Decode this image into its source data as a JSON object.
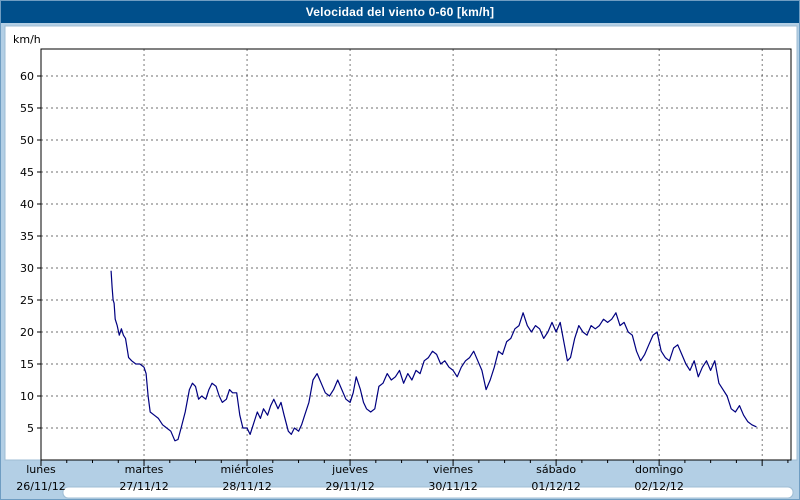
{
  "title_bar": {
    "title": "Velocidad del viento 0-60 [km/h]"
  },
  "chart_data": {
    "type": "line",
    "title": "Velocidad del viento 0-60 [km/h]",
    "ylabel": "km/h",
    "ylim": [
      0,
      60
    ],
    "y_ticks": [
      5,
      10,
      15,
      20,
      25,
      30,
      35,
      40,
      45,
      50,
      55,
      60
    ],
    "grid": true,
    "legend": false,
    "x_domain_days": [
      0,
      7.28
    ],
    "x_axis_days": [
      {
        "name": "lunes",
        "date": "26/11/12"
      },
      {
        "name": "martes",
        "date": "27/11/12"
      },
      {
        "name": "miércoles",
        "date": "28/11/12"
      },
      {
        "name": "jueves",
        "date": "29/11/12"
      },
      {
        "name": "viernes",
        "date": "30/11/12"
      },
      {
        "name": "sábado",
        "date": "01/12/12"
      },
      {
        "name": "domingo",
        "date": "02/12/12"
      }
    ],
    "series": [
      {
        "name": "velocidad del viento",
        "unit": "km/h",
        "color": "#000080",
        "points_day_value": [
          [
            0.68,
            29.5
          ],
          [
            0.69,
            27
          ],
          [
            0.7,
            25
          ],
          [
            0.71,
            24.5
          ],
          [
            0.72,
            22
          ],
          [
            0.74,
            21
          ],
          [
            0.76,
            19.5
          ],
          [
            0.78,
            20.5
          ],
          [
            0.8,
            19.5
          ],
          [
            0.82,
            19
          ],
          [
            0.85,
            16
          ],
          [
            0.88,
            15.5
          ],
          [
            0.92,
            15
          ],
          [
            0.96,
            15
          ],
          [
            1.0,
            14.5
          ],
          [
            1.02,
            13.5
          ],
          [
            1.04,
            10
          ],
          [
            1.06,
            7.5
          ],
          [
            1.1,
            7
          ],
          [
            1.14,
            6.5
          ],
          [
            1.18,
            5.5
          ],
          [
            1.22,
            5
          ],
          [
            1.26,
            4.5
          ],
          [
            1.3,
            3
          ],
          [
            1.33,
            3.2
          ],
          [
            1.36,
            5
          ],
          [
            1.4,
            7.5
          ],
          [
            1.44,
            11
          ],
          [
            1.47,
            12
          ],
          [
            1.5,
            11.5
          ],
          [
            1.53,
            9.5
          ],
          [
            1.56,
            10
          ],
          [
            1.6,
            9.5
          ],
          [
            1.63,
            11
          ],
          [
            1.66,
            12
          ],
          [
            1.7,
            11.5
          ],
          [
            1.73,
            10
          ],
          [
            1.76,
            9
          ],
          [
            1.8,
            9.5
          ],
          [
            1.83,
            11
          ],
          [
            1.86,
            10.5
          ],
          [
            1.9,
            10.5
          ],
          [
            1.93,
            7
          ],
          [
            1.96,
            5
          ],
          [
            2.0,
            5
          ],
          [
            2.03,
            4
          ],
          [
            2.06,
            5.5
          ],
          [
            2.1,
            7.5
          ],
          [
            2.13,
            6.5
          ],
          [
            2.16,
            8
          ],
          [
            2.2,
            7
          ],
          [
            2.23,
            8.5
          ],
          [
            2.26,
            9.5
          ],
          [
            2.3,
            8
          ],
          [
            2.33,
            9
          ],
          [
            2.36,
            7
          ],
          [
            2.4,
            4.5
          ],
          [
            2.43,
            4
          ],
          [
            2.46,
            5
          ],
          [
            2.5,
            4.5
          ],
          [
            2.53,
            5.5
          ],
          [
            2.56,
            7
          ],
          [
            2.6,
            9
          ],
          [
            2.64,
            12.5
          ],
          [
            2.68,
            13.5
          ],
          [
            2.72,
            12
          ],
          [
            2.76,
            10.5
          ],
          [
            2.8,
            10
          ],
          [
            2.84,
            11
          ],
          [
            2.88,
            12.5
          ],
          [
            2.92,
            11
          ],
          [
            2.96,
            9.5
          ],
          [
            3.0,
            9
          ],
          [
            3.03,
            10.5
          ],
          [
            3.06,
            13
          ],
          [
            3.1,
            11
          ],
          [
            3.13,
            9
          ],
          [
            3.16,
            8
          ],
          [
            3.2,
            7.5
          ],
          [
            3.24,
            8
          ],
          [
            3.28,
            11.5
          ],
          [
            3.32,
            12
          ],
          [
            3.36,
            13.5
          ],
          [
            3.4,
            12.5
          ],
          [
            3.44,
            13
          ],
          [
            3.48,
            14
          ],
          [
            3.52,
            12
          ],
          [
            3.56,
            13.5
          ],
          [
            3.6,
            12.5
          ],
          [
            3.64,
            14
          ],
          [
            3.68,
            13.5
          ],
          [
            3.72,
            15.5
          ],
          [
            3.76,
            16
          ],
          [
            3.8,
            17
          ],
          [
            3.84,
            16.5
          ],
          [
            3.88,
            15
          ],
          [
            3.92,
            15.5
          ],
          [
            3.96,
            14.5
          ],
          [
            4.0,
            14
          ],
          [
            4.04,
            13
          ],
          [
            4.08,
            14.5
          ],
          [
            4.12,
            15.5
          ],
          [
            4.16,
            16
          ],
          [
            4.2,
            17
          ],
          [
            4.24,
            15.5
          ],
          [
            4.28,
            14
          ],
          [
            4.32,
            11
          ],
          [
            4.36,
            12.5
          ],
          [
            4.4,
            14.5
          ],
          [
            4.44,
            17
          ],
          [
            4.48,
            16.5
          ],
          [
            4.52,
            18.5
          ],
          [
            4.56,
            19
          ],
          [
            4.6,
            20.5
          ],
          [
            4.64,
            21
          ],
          [
            4.68,
            23
          ],
          [
            4.72,
            21
          ],
          [
            4.76,
            20
          ],
          [
            4.8,
            21
          ],
          [
            4.84,
            20.5
          ],
          [
            4.88,
            19
          ],
          [
            4.92,
            20
          ],
          [
            4.96,
            21.5
          ],
          [
            5.0,
            20
          ],
          [
            5.04,
            21.5
          ],
          [
            5.08,
            18
          ],
          [
            5.11,
            15.5
          ],
          [
            5.14,
            16
          ],
          [
            5.18,
            19
          ],
          [
            5.22,
            21
          ],
          [
            5.26,
            20
          ],
          [
            5.3,
            19.5
          ],
          [
            5.34,
            21
          ],
          [
            5.38,
            20.5
          ],
          [
            5.42,
            21
          ],
          [
            5.46,
            22
          ],
          [
            5.5,
            21.5
          ],
          [
            5.54,
            22
          ],
          [
            5.58,
            23
          ],
          [
            5.62,
            21
          ],
          [
            5.66,
            21.5
          ],
          [
            5.7,
            20
          ],
          [
            5.74,
            19.5
          ],
          [
            5.78,
            17
          ],
          [
            5.82,
            15.5
          ],
          [
            5.86,
            16.5
          ],
          [
            5.9,
            18
          ],
          [
            5.94,
            19.5
          ],
          [
            5.98,
            20
          ],
          [
            6.02,
            17
          ],
          [
            6.06,
            16
          ],
          [
            6.1,
            15.5
          ],
          [
            6.14,
            17.5
          ],
          [
            6.18,
            18
          ],
          [
            6.22,
            16.5
          ],
          [
            6.26,
            15
          ],
          [
            6.3,
            14
          ],
          [
            6.34,
            15.5
          ],
          [
            6.38,
            13
          ],
          [
            6.42,
            14.5
          ],
          [
            6.46,
            15.5
          ],
          [
            6.5,
            14
          ],
          [
            6.54,
            15.5
          ],
          [
            6.58,
            12
          ],
          [
            6.62,
            11
          ],
          [
            6.66,
            10
          ],
          [
            6.7,
            8
          ],
          [
            6.74,
            7.5
          ],
          [
            6.78,
            8.5
          ],
          [
            6.82,
            7
          ],
          [
            6.86,
            6
          ],
          [
            6.9,
            5.5
          ],
          [
            6.94,
            5.2
          ]
        ]
      }
    ]
  },
  "colors": {
    "window_background": "#b3cfe5",
    "title_bar_background": "#004f8b",
    "title_bar_text": "#ffffff",
    "panel_background": "#ffffff",
    "panel_border": "#9fbdd4",
    "grid_line": "#404040",
    "axis_line": "#000000",
    "series_line": "#000080",
    "scrollbar_fill": "#ffffff",
    "scrollbar_border": "#9fbdd4"
  }
}
